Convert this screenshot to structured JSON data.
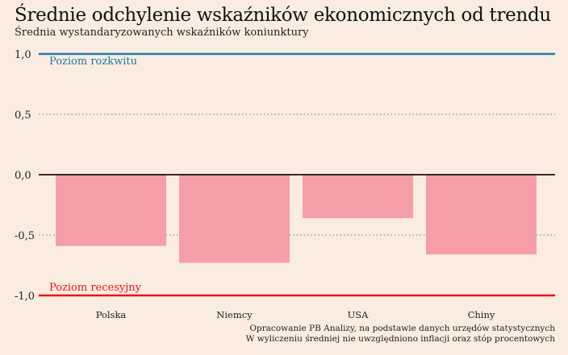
{
  "title": "Średnie odchylenie wskaźników ekonomicznych od trendu",
  "subtitle": "Średnia wystandaryzowanych wskaźników koniunktury",
  "notes": {
    "line1": "Opracowanie PB Analizy, na podstawie danych urzędów statystycznych",
    "line2": "W wyliczeniu średniej nie uwzględniono inflacji oraz stóp procentowych"
  },
  "chart_data": {
    "type": "bar",
    "categories": [
      "Polska",
      "Niemcy",
      "USA",
      "Chiny"
    ],
    "values": [
      -0.59,
      -0.73,
      -0.36,
      -0.66
    ],
    "ylim": [
      -1.0,
      1.0
    ],
    "yticks": [
      1.0,
      0.5,
      0.0,
      -0.5,
      -1.0
    ],
    "ytick_labels": [
      "1,0",
      "0,5",
      "0,0",
      "-0,5",
      "-1,0"
    ],
    "grid": true,
    "reference_lines": [
      {
        "value": 1.0,
        "label": "Poziom rozkwitu",
        "color": "#1a7aa8"
      },
      {
        "value": -1.0,
        "label": "Poziom recesyjny",
        "color": "#e8141c"
      }
    ],
    "colors": {
      "bar": "#f69ea8",
      "zero_line": "#111111",
      "grid": "#777777"
    }
  }
}
